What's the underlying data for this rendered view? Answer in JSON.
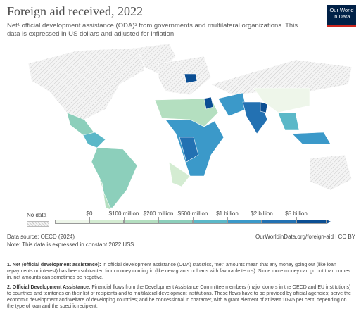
{
  "header": {
    "title": "Foreign aid received, 2022",
    "subtitle": "Net¹ official development assistance (ODA)² from governments and multilateral organizations. This data is expressed in US dollars and adjusted for inflation.",
    "logo": "Our World in Data"
  },
  "legend": {
    "no_data": "No data",
    "colors": [
      "#eef6ea",
      "#d4ecd2",
      "#b4dfc0",
      "#8ccfbb",
      "#5bb8c8",
      "#3b99c9",
      "#2371b2",
      "#0b4e93"
    ],
    "ticks": [
      "$0",
      "$100 million",
      "$200 million",
      "$500 million",
      "$1 billion",
      "$2 billion",
      "$5 billion"
    ]
  },
  "footer": {
    "source": "Data source: OECD (2024)",
    "note": "Note: This data is expressed in constant 2022 US$.",
    "url": "OurWorldinData.org/foreign-aid | CC BY"
  },
  "footnotes": [
    {
      "label": "1. Net (official development assistance):",
      "text": "In official development assistance (ODA) statistics, \"net\" amounts mean that any money going out (like loan repayments or interest) has been subtracted from money coming in (like new grants or loans with favorable terms). Since more money can go out than comes in, net amounts can sometimes be negative."
    },
    {
      "label": "2. Official Development Assistance:",
      "text": "Financial flows from the Development Assistance Committee members (major donors in the OECD and EU institutions) to countries and territories on their list of recipients and to multilateral development institutions. These flows have to be provided by official agencies; serve the economic development and welfare of developing countries; and be concessional in character, with a grant element of at least 10-45 per cent, depending on the type of loan and the specific recipient."
    }
  ]
}
